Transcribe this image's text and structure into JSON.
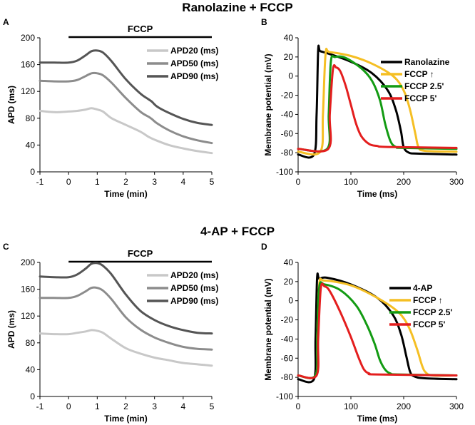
{
  "figure": {
    "row_titles": [
      "Ranolazine + FCCP",
      "4-AP + FCCP"
    ]
  },
  "chart_data": [
    {
      "panel": "A",
      "type": "line",
      "title": "Ranolazine + FCCP",
      "xlabel": "Time (min)",
      "ylabel": "APD (ms)",
      "xlim": [
        -1,
        5
      ],
      "ylim": [
        0,
        200
      ],
      "xticks": [
        -1,
        0,
        1,
        2,
        3,
        4,
        5
      ],
      "yticks": [
        0,
        40,
        80,
        120,
        160,
        200
      ],
      "bar_label": "FCCP",
      "bar_range": [
        0,
        5
      ],
      "legend_position": "top-right",
      "series": [
        {
          "name": "APD20 (ms)",
          "color": "#c8c8c8",
          "x": [
            -1,
            -0.5,
            0,
            0.3,
            0.6,
            0.8,
            1.0,
            1.2,
            1.5,
            2.0,
            2.5,
            2.8,
            3.0,
            3.5,
            4.0,
            4.5,
            5.0
          ],
          "y": [
            91,
            89,
            90,
            91,
            93,
            95,
            93,
            90,
            80,
            70,
            60,
            52,
            48,
            40,
            35,
            31,
            28
          ]
        },
        {
          "name": "APD50 (ms)",
          "color": "#8c8c8c",
          "x": [
            -1,
            -0.5,
            0,
            0.3,
            0.6,
            0.8,
            1.0,
            1.2,
            1.5,
            2.0,
            2.5,
            2.8,
            2.9,
            3.1,
            3.5,
            4.0,
            4.5,
            5.0
          ],
          "y": [
            136,
            135,
            135,
            137,
            143,
            147,
            147,
            144,
            133,
            110,
            90,
            82,
            79,
            72,
            62,
            53,
            47,
            43
          ]
        },
        {
          "name": "APD90 (ms)",
          "color": "#555555",
          "x": [
            -1,
            -0.5,
            0,
            0.3,
            0.6,
            0.8,
            1.0,
            1.2,
            1.5,
            2.0,
            2.5,
            2.8,
            2.9,
            3.1,
            3.5,
            4.0,
            4.5,
            5.0
          ],
          "y": [
            163,
            163,
            163,
            166,
            174,
            180,
            181,
            178,
            165,
            138,
            117,
            108,
            105,
            97,
            88,
            79,
            73,
            70
          ]
        }
      ]
    },
    {
      "panel": "B",
      "type": "line",
      "xlabel": "Time (ms)",
      "ylabel": "Membrane potential (mV)",
      "xlim": [
        0,
        300
      ],
      "ylim": [
        -100,
        40
      ],
      "xticks": [
        0,
        100,
        200,
        300
      ],
      "yticks": [
        -100,
        -80,
        -60,
        -40,
        -20,
        0,
        20,
        40
      ],
      "legend_position": "top-right",
      "series": [
        {
          "name": "Ranolazine",
          "color": "#000000",
          "x": [
            0,
            30,
            35,
            38,
            42,
            60,
            100,
            140,
            170,
            185,
            195,
            200,
            210,
            230,
            300
          ],
          "y": [
            -82,
            -82,
            -40,
            27,
            26,
            23,
            15,
            3,
            -15,
            -35,
            -58,
            -74,
            -80,
            -81,
            -82
          ]
        },
        {
          "name": "FCCP ↑",
          "color": "#f5bf24",
          "x": [
            0,
            42,
            47,
            52,
            60,
            100,
            140,
            180,
            200,
            212,
            222,
            228,
            240,
            300
          ],
          "y": [
            -79,
            -79,
            -40,
            23,
            25,
            21,
            13,
            0,
            -15,
            -35,
            -60,
            -74,
            -78,
            -79
          ]
        },
        {
          "name": "FCCP 2.5'",
          "color": "#139b13",
          "x": [
            0,
            55,
            58,
            62,
            70,
            90,
            120,
            140,
            155,
            165,
            175,
            185,
            200,
            300
          ],
          "y": [
            -76,
            -76,
            -40,
            15,
            20,
            19,
            8,
            -5,
            -25,
            -50,
            -68,
            -74,
            -75,
            -76
          ]
        },
        {
          "name": "FCCP 5'",
          "color": "#e41e1e",
          "x": [
            0,
            57,
            60,
            66,
            72,
            80,
            90,
            100,
            110,
            120,
            135,
            150,
            170,
            300
          ],
          "y": [
            -76,
            -76,
            -40,
            7,
            9,
            5,
            -10,
            -30,
            -50,
            -63,
            -71,
            -73,
            -74,
            -75
          ]
        }
      ]
    },
    {
      "panel": "C",
      "type": "line",
      "title": "4-AP + FCCP",
      "xlabel": "Time (min)",
      "ylabel": "APD (ms)",
      "xlim": [
        -1,
        5
      ],
      "ylim": [
        0,
        200
      ],
      "xticks": [
        -1,
        0,
        1,
        2,
        3,
        4,
        5
      ],
      "yticks": [
        0,
        40,
        80,
        120,
        160,
        200
      ],
      "bar_label": "FCCP",
      "bar_range": [
        0,
        5
      ],
      "legend_position": "top-right",
      "series": [
        {
          "name": "APD20 (ms)",
          "color": "#c8c8c8",
          "x": [
            -1,
            -0.5,
            0,
            0.3,
            0.6,
            0.8,
            1.0,
            1.2,
            1.5,
            2.0,
            2.5,
            3.0,
            3.5,
            4.0,
            4.5,
            5.0
          ],
          "y": [
            94,
            93,
            93,
            95,
            97,
            99,
            98,
            95,
            86,
            72,
            64,
            58,
            54,
            50,
            48,
            46
          ]
        },
        {
          "name": "APD50 (ms)",
          "color": "#8c8c8c",
          "x": [
            -1,
            -0.5,
            0,
            0.3,
            0.6,
            0.8,
            1.0,
            1.2,
            1.5,
            2.0,
            2.5,
            3.0,
            3.5,
            4.0,
            4.5,
            5.0
          ],
          "y": [
            147,
            147,
            147,
            150,
            157,
            162,
            162,
            158,
            145,
            118,
            100,
            88,
            80,
            74,
            71,
            70
          ]
        },
        {
          "name": "APD90 (ms)",
          "color": "#555555",
          "x": [
            -1,
            -0.5,
            0,
            0.3,
            0.6,
            0.8,
            1.0,
            1.2,
            1.5,
            2.0,
            2.5,
            3.0,
            3.5,
            4.0,
            4.5,
            5.0
          ],
          "y": [
            179,
            178,
            178,
            182,
            191,
            198,
            199,
            195,
            182,
            152,
            128,
            114,
            105,
            99,
            95,
            94
          ]
        }
      ]
    },
    {
      "panel": "D",
      "type": "line",
      "xlabel": "Time (ms)",
      "ylabel": "Membrane potential (mV)",
      "xlim": [
        0,
        300
      ],
      "ylim": [
        -100,
        40
      ],
      "xticks": [
        0,
        100,
        200,
        300
      ],
      "yticks": [
        -100,
        -80,
        -60,
        -40,
        -20,
        0,
        20,
        40
      ],
      "legend_position": "top-right",
      "series": [
        {
          "name": "4-AP",
          "color": "#000000",
          "x": [
            0,
            30,
            33,
            36,
            40,
            55,
            100,
            150,
            180,
            195,
            205,
            212,
            220,
            240,
            300
          ],
          "y": [
            -82,
            -82,
            -40,
            24,
            23,
            24,
            17,
            3,
            -15,
            -35,
            -58,
            -74,
            -79,
            -81,
            -82
          ]
        },
        {
          "name": "FCCP ↑",
          "color": "#f5bf24",
          "x": [
            0,
            33,
            36,
            40,
            50,
            100,
            150,
            190,
            210,
            225,
            235,
            242,
            255,
            300
          ],
          "y": [
            -78,
            -78,
            -40,
            17,
            21,
            16,
            3,
            -12,
            -28,
            -50,
            -68,
            -75,
            -78,
            -78
          ]
        },
        {
          "name": "FCCP 2.5'",
          "color": "#139b13",
          "x": [
            0,
            33,
            36,
            40,
            50,
            80,
            110,
            130,
            145,
            155,
            165,
            175,
            190,
            300
          ],
          "y": [
            -78,
            -78,
            -40,
            14,
            17,
            11,
            -5,
            -25,
            -45,
            -62,
            -72,
            -76,
            -77,
            -78
          ]
        },
        {
          "name": "FCCP 5'",
          "color": "#e41e1e",
          "x": [
            0,
            35,
            38,
            43,
            50,
            60,
            80,
            100,
            115,
            125,
            135,
            150,
            300
          ],
          "y": [
            -78,
            -78,
            -40,
            13,
            15,
            10,
            -12,
            -38,
            -60,
            -72,
            -76,
            -77,
            -78
          ]
        }
      ]
    }
  ]
}
